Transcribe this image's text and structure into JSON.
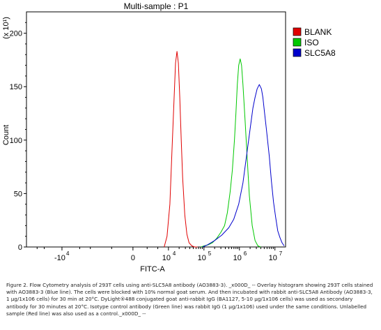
{
  "chart_data": {
    "type": "line",
    "title": "Multi-sample : P1",
    "xlabel": "FITC-A",
    "ylabel": "Count",
    "y_multiplier": "(x 10¹)",
    "ylim": [
      0,
      220
    ],
    "yticks": [
      0,
      50,
      100,
      150,
      200
    ],
    "xticks": [
      {
        "label": "-10",
        "exp": "4",
        "value": -2.0
      },
      {
        "label": "0",
        "exp": "",
        "value": 0.0
      },
      {
        "label": "10",
        "exp": "4",
        "value": 1.0
      },
      {
        "label": "10",
        "exp": "5",
        "value": 2.0
      },
      {
        "label": "10",
        "exp": "6",
        "value": 3.0
      },
      {
        "label": "10",
        "exp": "7",
        "value": 4.0
      }
    ],
    "xlim": [
      -3.0,
      4.3
    ],
    "legend_position": "right",
    "series": [
      {
        "name": "BLANK",
        "color": "#e00000",
        "x": [
          0.88,
          0.96,
          1.04,
          1.1,
          1.16,
          1.2,
          1.24,
          1.28,
          1.32,
          1.36,
          1.4,
          1.46,
          1.52,
          1.58,
          1.66,
          1.74,
          1.82
        ],
        "y": [
          0,
          10,
          40,
          90,
          140,
          172,
          183,
          172,
          140,
          100,
          65,
          30,
          12,
          4,
          1,
          0,
          0
        ]
      },
      {
        "name": "ISO",
        "color": "#00c800",
        "x": [
          1.92,
          2.0,
          2.12,
          2.24,
          2.36,
          2.48,
          2.58,
          2.66,
          2.74,
          2.8,
          2.86,
          2.9,
          2.94,
          2.98,
          3.02,
          3.06,
          3.1,
          3.16,
          3.22,
          3.28,
          3.36,
          3.44,
          3.52,
          3.6
        ],
        "y": [
          0,
          1,
          2,
          4,
          8,
          14,
          20,
          32,
          52,
          72,
          100,
          125,
          152,
          170,
          176,
          170,
          152,
          118,
          82,
          48,
          20,
          6,
          1,
          0
        ]
      },
      {
        "name": "SLC5A8",
        "color": "#0000cc",
        "x": [
          1.96,
          2.1,
          2.3,
          2.5,
          2.7,
          2.84,
          2.98,
          3.1,
          3.2,
          3.3,
          3.38,
          3.44,
          3.5,
          3.56,
          3.62,
          3.66,
          3.7,
          3.76,
          3.84,
          3.9,
          3.96,
          4.02,
          4.08,
          4.14,
          4.2,
          4.26
        ],
        "y": [
          0,
          2,
          6,
          11,
          18,
          26,
          40,
          60,
          85,
          110,
          130,
          140,
          148,
          152,
          148,
          140,
          128,
          110,
          85,
          62,
          42,
          28,
          15,
          9,
          4,
          1
        ]
      }
    ]
  },
  "caption": "Figure 2. Flow Cytometry analysis of 293T cells using anti-SLC5A8 antibody (AO3883-3). _x000D_ -- Overlay histogram showing 293T cells stained with AO3883-3 (Blue line). The cells were blocked with 10% normal goat serum. And then incubated with rabbit anti-SLC5A8 Antibody (AO3883-3, 1 µg/1x106 cells) for 30 min at 20°C. DyLight®488 conjugated goat anti-rabbit IgG (BA1127, 5-10 µg/1x106 cells) was used as secondary antibody for 30 minutes at 20°C. Isotype control antibody (Green line) was rabbit IgG (1 µg/1x106) used under the same conditions. Unlabelled sample (Red line) was also used as a control._x000D_ --"
}
